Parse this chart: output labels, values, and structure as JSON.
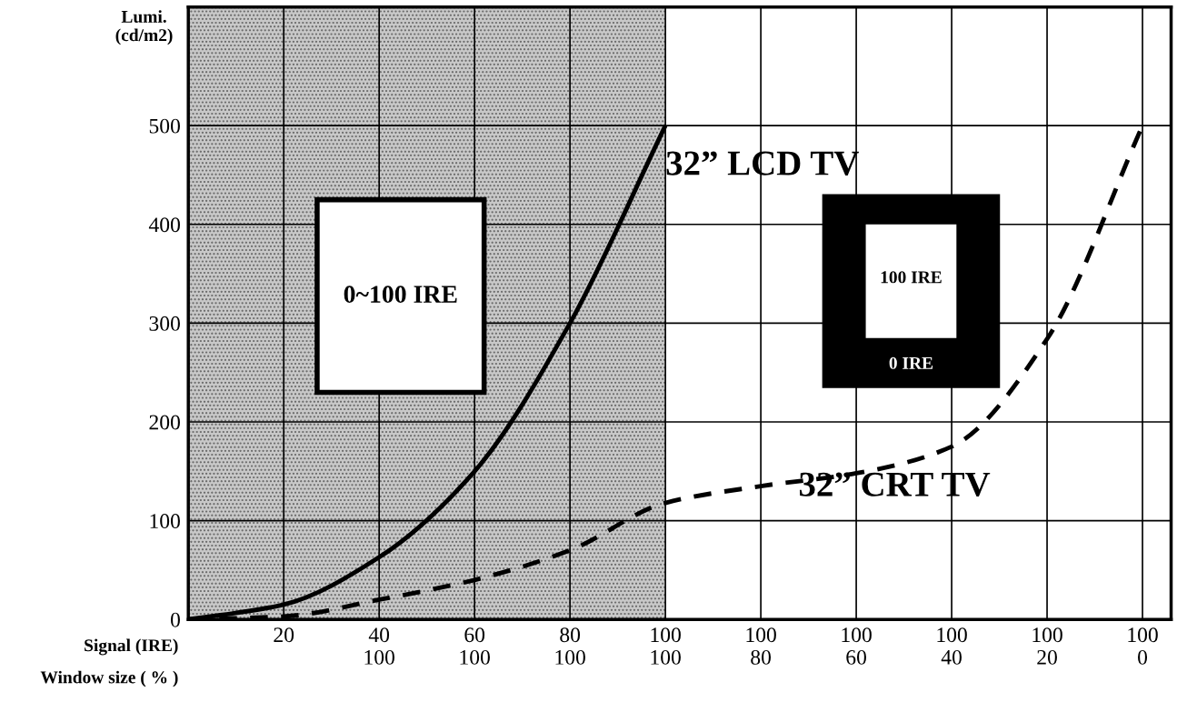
{
  "chart_data": {
    "type": "line",
    "ylabel": "Lumi.\n(cd/m2)",
    "categories": [
      null,
      "20",
      "40\n100",
      "60\n100",
      "80\n100",
      "100\n100",
      "100\n80",
      "100\n60",
      "100\n40",
      "100\n20",
      "100\n0"
    ],
    "series": [
      {
        "name": "32” CRT TV",
        "color": "#000000",
        "line_style": "dashed",
        "values": [
          0,
          3,
          20,
          40,
          70,
          118,
          135,
          148,
          175,
          284,
          500
        ]
      },
      {
        "name": "32” LCD TV",
        "color": "#000000",
        "line_style": "solid",
        "values": [
          0,
          15,
          63,
          150,
          300,
          500,
          null,
          null,
          null,
          null,
          null
        ]
      }
    ],
    "ylim": [
      0,
      620
    ],
    "yticks": [
      0,
      100,
      200,
      300,
      400,
      500
    ],
    "grid": true,
    "annotations": [
      "0~100 IRE",
      "100 IRE",
      "0 IRE",
      "Signal (IRE)",
      "Window size ( % )"
    ]
  }
}
